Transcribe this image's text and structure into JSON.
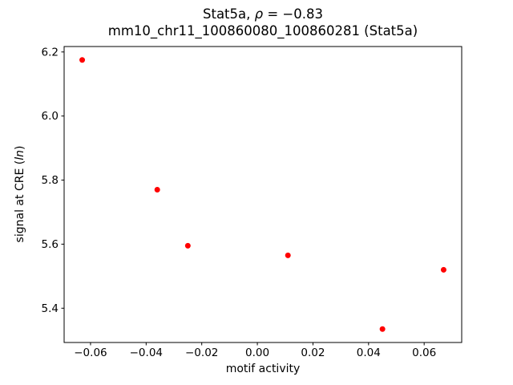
{
  "title": {
    "line1_prefix": "Stat5a, ",
    "line1_italic": "ρ",
    "line1_suffix": " = −0.83",
    "line2": "mm10_chr11_100860080_100860281 (Stat5a)"
  },
  "axis": {
    "xlabel": "motif activity",
    "ylabel_prefix": "signal at CRE (",
    "ylabel_italic": "ln",
    "ylabel_suffix": ")"
  },
  "chart_data": {
    "type": "scatter",
    "title": "Stat5a, ρ = −0.83",
    "subtitle": "mm10_chr11_100860080_100860281 (Stat5a)",
    "xlabel": "motif activity",
    "ylabel": "signal at CRE (ln)",
    "marker_color": "#ff0000",
    "marker_radius_px": 3.5,
    "grid": false,
    "legend": null,
    "xlim": [
      -0.0695,
      0.0735
    ],
    "ylim": [
      5.293,
      6.217
    ],
    "xticks": [
      {
        "value": -0.06,
        "label": "−0.06"
      },
      {
        "value": -0.04,
        "label": "−0.04"
      },
      {
        "value": -0.02,
        "label": "−0.02"
      },
      {
        "value": 0.0,
        "label": "0.00"
      },
      {
        "value": 0.02,
        "label": "0.02"
      },
      {
        "value": 0.04,
        "label": "0.04"
      },
      {
        "value": 0.06,
        "label": "0.06"
      }
    ],
    "yticks": [
      {
        "value": 5.4,
        "label": "5.4"
      },
      {
        "value": 5.6,
        "label": "5.6"
      },
      {
        "value": 5.8,
        "label": "5.8"
      },
      {
        "value": 6.0,
        "label": "6.0"
      },
      {
        "value": 6.2,
        "label": "6.2"
      }
    ],
    "points": [
      {
        "x": -0.063,
        "y": 6.175
      },
      {
        "x": -0.036,
        "y": 5.77
      },
      {
        "x": -0.025,
        "y": 5.595
      },
      {
        "x": 0.011,
        "y": 5.565
      },
      {
        "x": 0.045,
        "y": 5.335
      },
      {
        "x": 0.067,
        "y": 5.52
      }
    ]
  }
}
